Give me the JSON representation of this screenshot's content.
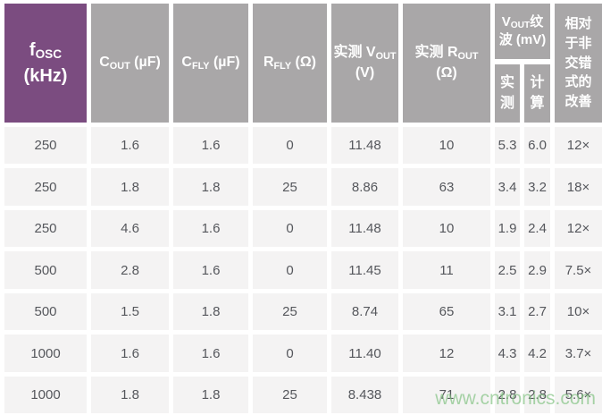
{
  "header": {
    "fosc": {
      "base": "f",
      "sub": "OSC",
      "line2": "(kHz)"
    },
    "cout": {
      "base": "C",
      "sub": "OUT",
      "unit": " (µF)"
    },
    "cfly": {
      "base": "C",
      "sub": "FLY",
      "unit": " (µF)"
    },
    "rfly": {
      "base": "R",
      "sub": "FLY",
      "unit": " (Ω)"
    },
    "vout": {
      "prefix": "实测 ",
      "base": "V",
      "sub": "OUT",
      "line2": "(V)"
    },
    "rout": {
      "prefix": "实测 ",
      "base": "R",
      "sub": "OUT",
      "line2": "(Ω)"
    },
    "ripple": {
      "base": "V",
      "sub": "OUT",
      "tail": "纹",
      "line2": "波 (mV)",
      "measured": "实测",
      "calculated": "计算"
    },
    "improvement": "相对于非交错式的改善"
  },
  "rows": [
    [
      "250",
      "1.6",
      "1.6",
      "0",
      "11.48",
      "10",
      "5.3",
      "6.0",
      "12×"
    ],
    [
      "250",
      "1.8",
      "1.8",
      "25",
      "8.86",
      "63",
      "3.4",
      "3.2",
      "18×"
    ],
    [
      "250",
      "4.6",
      "1.6",
      "0",
      "11.48",
      "10",
      "1.9",
      "2.4",
      "12×"
    ],
    [
      "500",
      "2.8",
      "1.6",
      "0",
      "11.45",
      "11",
      "2.5",
      "2.9",
      "7.5×"
    ],
    [
      "500",
      "1.5",
      "1.8",
      "25",
      "8.74",
      "65",
      "3.1",
      "2.7",
      "10×"
    ],
    [
      "1000",
      "1.6",
      "1.6",
      "0",
      "11.40",
      "12",
      "4.3",
      "4.2",
      "3.7×"
    ],
    [
      "1000",
      "1.8",
      "1.8",
      "25",
      "8.438",
      "71",
      "2.8",
      "2.8",
      "5.6×"
    ]
  ],
  "watermark": "www.cntronics.com",
  "colors": {
    "purple": "#7B4C80",
    "header_gray": "#A9A7A8",
    "row_bg": "#F4F3F3",
    "data_text": "#55575C",
    "watermark_green": "#85C485"
  }
}
